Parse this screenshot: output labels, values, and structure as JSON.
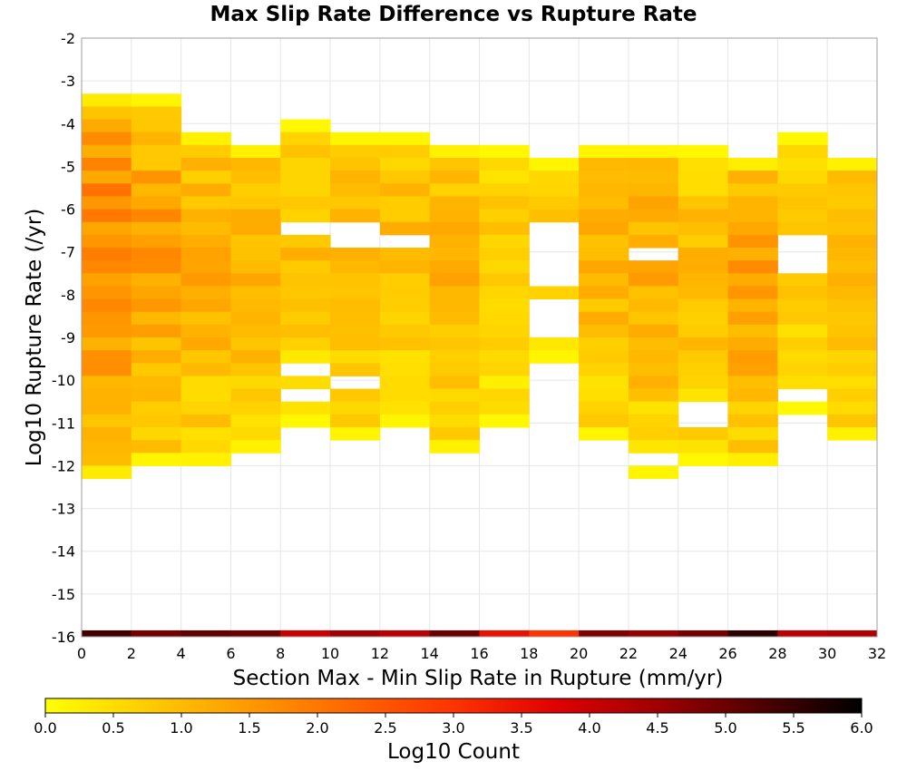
{
  "chart_data": {
    "type": "heatmap",
    "title": "Max Slip Rate Difference vs Rupture Rate",
    "xlabel": "Section Max - Min Slip Rate in Rupture (mm/yr)",
    "ylabel": "Log10 Rupture Rate (/yr)",
    "xlim": [
      0,
      32
    ],
    "ylim": [
      -16,
      -2
    ],
    "x_ticks": [
      "0",
      "2",
      "4",
      "6",
      "8",
      "10",
      "12",
      "14",
      "16",
      "18",
      "20",
      "22",
      "24",
      "26",
      "28",
      "30",
      "32"
    ],
    "y_ticks": [
      "-2",
      "-3",
      "-4",
      "-5",
      "-6",
      "-7",
      "-8",
      "-9",
      "-10",
      "-11",
      "-12",
      "-13",
      "-14",
      "-15",
      "-16"
    ],
    "bin_width_x": 2,
    "bin_height_y": 0.3,
    "grid": true,
    "colorbar": {
      "label": "Log10 Count",
      "min": 0,
      "max": 6,
      "ticks": [
        "0.0",
        "0.5",
        "1.0",
        "1.5",
        "2.0",
        "2.5",
        "3.0",
        "3.5",
        "4.0",
        "4.5",
        "5.0",
        "5.5",
        "6.0"
      ],
      "stops": [
        "#ffff00",
        "#ffcc00",
        "#ff9900",
        "#ff6600",
        "#ff3300",
        "#e00000",
        "#a00000",
        "#500000",
        "#000000"
      ]
    },
    "columns": [
      {
        "x0": 0,
        "y_top": -3.3,
        "y_bottom": -12.4,
        "min": 0.6,
        "max": 2.2
      },
      {
        "x0": 2,
        "y_top": -3.3,
        "y_bottom": -12.1,
        "min": 0.3,
        "max": 1.8
      },
      {
        "x0": 4,
        "y_top": -4.2,
        "y_bottom": -12.1,
        "min": 0.4,
        "max": 1.5
      },
      {
        "x0": 6,
        "y_top": -4.5,
        "y_bottom": -11.6,
        "min": 0.4,
        "max": 1.4
      },
      {
        "x0": 8,
        "y_top": -3.9,
        "y_bottom": -11.0,
        "min": 0.2,
        "max": 1.2
      },
      {
        "x0": 10,
        "y_top": -4.2,
        "y_bottom": -11.3,
        "min": 0.3,
        "max": 1.3
      },
      {
        "x0": 12,
        "y_top": -4.2,
        "y_bottom": -11.0,
        "min": 0.3,
        "max": 1.3
      },
      {
        "x0": 14,
        "y_top": -4.5,
        "y_bottom": -11.6,
        "min": 0.4,
        "max": 1.4
      },
      {
        "x0": 16,
        "y_top": -4.5,
        "y_bottom": -11.0,
        "min": 0.2,
        "max": 1.0
      },
      {
        "x0": 18,
        "y_top": -4.8,
        "y_bottom": -9.6,
        "min": 0.3,
        "max": 1.0
      },
      {
        "x0": 20,
        "y_top": -4.5,
        "y_bottom": -11.3,
        "min": 0.3,
        "max": 1.4
      },
      {
        "x0": 22,
        "y_top": -4.5,
        "y_bottom": -12.4,
        "min": 0.3,
        "max": 1.6
      },
      {
        "x0": 24,
        "y_top": -4.5,
        "y_bottom": -11.9,
        "min": 0.2,
        "max": 1.3
      },
      {
        "x0": 26,
        "y_top": -4.8,
        "y_bottom": -12.1,
        "min": 0.5,
        "max": 1.7
      },
      {
        "x0": 28,
        "y_top": -4.2,
        "y_bottom": -10.7,
        "min": 0.2,
        "max": 1.0
      },
      {
        "x0": 30,
        "y_top": -4.8,
        "y_bottom": -11.3,
        "min": 0.4,
        "max": 1.3
      }
    ],
    "gaps": [
      {
        "x0": 8,
        "y_from": -6.4,
        "y_to": -6.7
      },
      {
        "x0": 8,
        "y_from": -9.6,
        "y_to": -9.9
      },
      {
        "x0": 8,
        "y_from": -10.2,
        "y_to": -10.5
      },
      {
        "x0": 10,
        "y_from": -6.4,
        "y_to": -7.0
      },
      {
        "x0": 10,
        "y_from": -9.9,
        "y_to": -10.2
      },
      {
        "x0": 12,
        "y_from": -6.7,
        "y_to": -7.0
      },
      {
        "x0": 18,
        "y_from": -6.4,
        "y_to": -7.9
      },
      {
        "x0": 18,
        "y_from": -8.2,
        "y_to": -9.0
      },
      {
        "x0": 22,
        "y_from": -7.0,
        "y_to": -7.3
      },
      {
        "x0": 22,
        "y_from": -11.6,
        "y_to": -12.1
      },
      {
        "x0": 24,
        "y_from": -10.5,
        "y_to": -11.0
      },
      {
        "x0": 28,
        "y_from": -6.7,
        "y_to": -7.6
      },
      {
        "x0": 28,
        "y_from": -10.2,
        "y_to": -10.5
      }
    ],
    "bottom_row": {
      "y_top": -15.85,
      "y_bottom": -16,
      "values": [
        5.4,
        4.9,
        5.1,
        5.0,
        4.0,
        4.5,
        4.2,
        5.0,
        3.5,
        3.0,
        4.8,
        4.6,
        4.9,
        5.6,
        4.2,
        4.3
      ]
    }
  }
}
